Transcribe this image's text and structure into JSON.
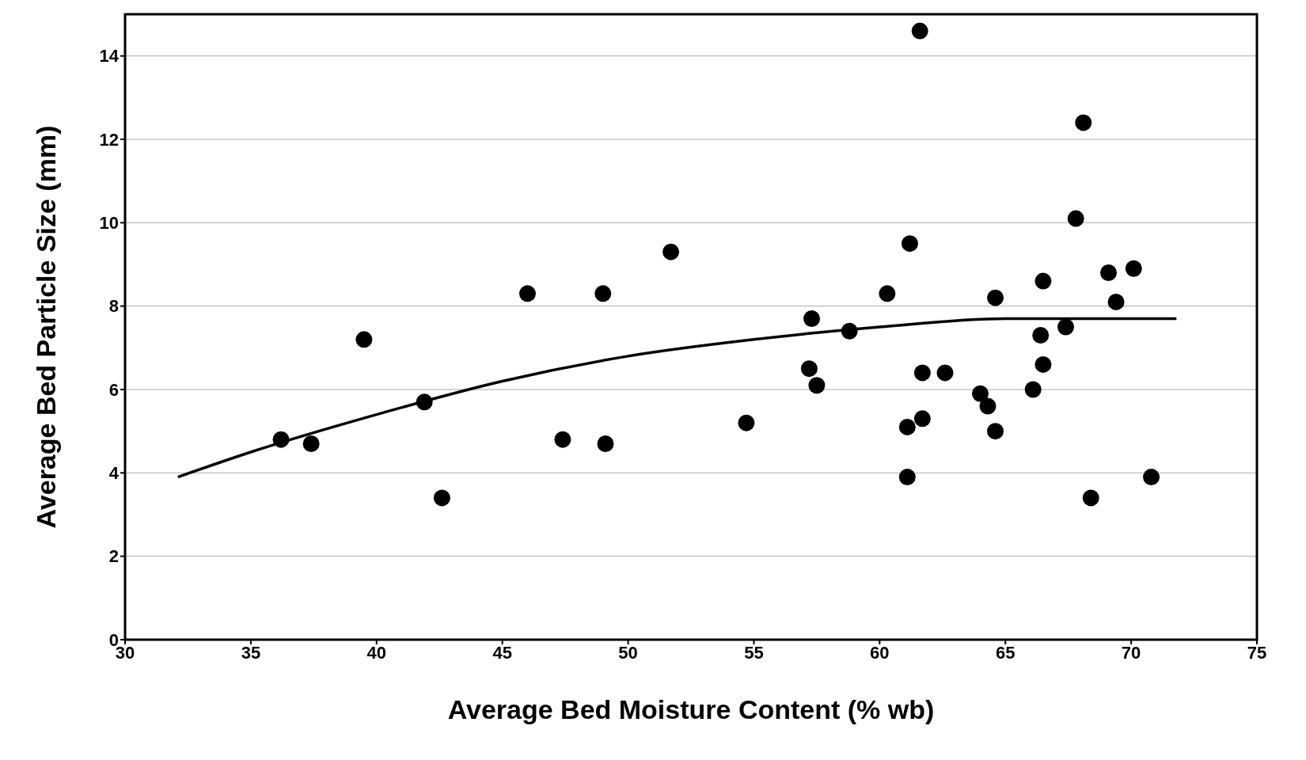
{
  "chart_data": {
    "type": "scatter",
    "xlabel": "Average Bed Moisture Content (% wb)",
    "ylabel": "Average Bed Particle Size (mm)",
    "xlim": [
      30,
      75
    ],
    "xticks": [
      30,
      35,
      40,
      45,
      50,
      55,
      60,
      65,
      70,
      75
    ],
    "ylim": [
      0,
      15
    ],
    "yticks": [
      0,
      2,
      4,
      6,
      8,
      10,
      12,
      14
    ],
    "grid": "y",
    "marker": "circle",
    "series": [
      {
        "color": "#000000",
        "x": [
          36.2,
          37.4,
          39.5,
          41.9,
          42.6,
          46.0,
          47.4,
          49.0,
          49.1,
          51.7,
          54.7,
          57.3,
          57.2,
          57.5,
          58.8,
          60.3,
          61.2,
          61.1,
          61.1,
          61.6,
          61.7,
          61.7,
          62.6,
          64.0,
          64.3,
          64.6,
          64.6,
          66.1,
          66.5,
          66.4,
          66.5,
          67.4,
          67.8,
          68.1,
          68.4,
          69.1,
          69.4,
          70.1,
          70.8
        ],
        "values": [
          4.8,
          4.7,
          7.2,
          5.7,
          3.4,
          8.3,
          4.8,
          8.3,
          4.7,
          9.3,
          5.2,
          7.7,
          6.5,
          6.1,
          7.4,
          8.3,
          9.5,
          5.1,
          3.9,
          14.6,
          6.4,
          5.3,
          6.4,
          5.9,
          5.6,
          5.0,
          8.2,
          6.0,
          8.6,
          7.3,
          6.6,
          7.5,
          10.1,
          12.4,
          3.4,
          8.8,
          8.1,
          8.9,
          3.9
        ]
      },
      {
        "type": "line",
        "color": "#000000",
        "marker": "none",
        "line_style": "solid",
        "x": [
          32.1,
          35,
          40,
          45,
          50,
          55,
          60,
          65,
          70,
          71.8
        ],
        "values": [
          3.9,
          4.5,
          5.4,
          6.2,
          6.8,
          7.2,
          7.5,
          7.7,
          7.7,
          7.7
        ]
      }
    ]
  }
}
